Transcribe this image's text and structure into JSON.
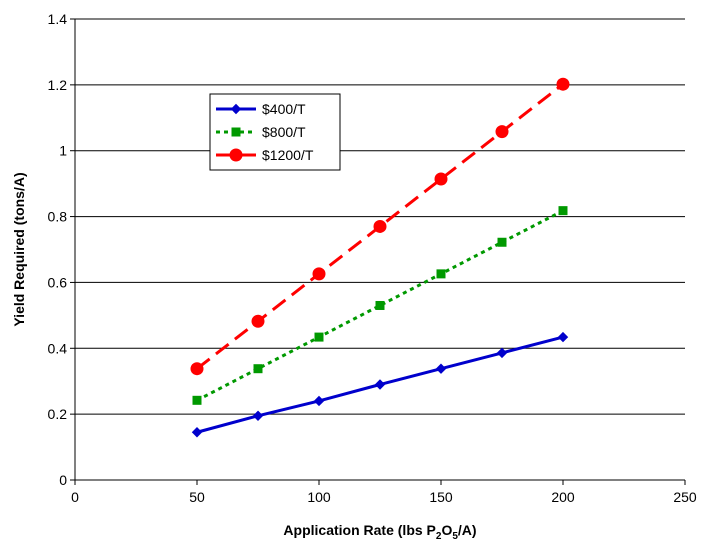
{
  "chart_data": {
    "type": "line",
    "title": "",
    "xlabel": "Application Rate (lbs P₂O₅/A)",
    "xlabel_parts": {
      "pre": "Application Rate (lbs P",
      "sub1": "2",
      "mid": "O",
      "sub2": "5",
      "post": "/A)"
    },
    "ylabel": "Yield Required (tons/A)",
    "xlim": [
      0,
      250
    ],
    "ylim": [
      0,
      1.4
    ],
    "x_ticks": [
      0,
      50,
      100,
      150,
      200,
      250
    ],
    "y_ticks": [
      0,
      0.2,
      0.4,
      0.6,
      0.8,
      1,
      1.2,
      1.4
    ],
    "x_tick_labels": [
      "0",
      "50",
      "100",
      "150",
      "200",
      "250"
    ],
    "y_tick_labels": [
      "0",
      "0.2",
      "0.4",
      "0.6",
      "0.8",
      "1",
      "1.2",
      "1.4"
    ],
    "grid": "horizontal",
    "legend_position": "top-left",
    "x": [
      50,
      75,
      100,
      125,
      150,
      175,
      200
    ],
    "series": [
      {
        "name": "$400/T",
        "color": "#0000cc",
        "marker": "diamond",
        "line": "solid",
        "values": [
          0.145,
          0.195,
          0.24,
          0.29,
          0.338,
          0.386,
          0.434
        ]
      },
      {
        "name": "$800/T",
        "color": "#009900",
        "marker": "square",
        "line": "dotted",
        "values": [
          0.242,
          0.338,
          0.434,
          0.53,
          0.626,
          0.722,
          0.818
        ]
      },
      {
        "name": "$1200/T",
        "color": "#ff0000",
        "marker": "circle",
        "line": "dashed",
        "values": [
          0.338,
          0.482,
          0.626,
          0.77,
          0.914,
          1.058,
          1.202
        ]
      }
    ]
  }
}
